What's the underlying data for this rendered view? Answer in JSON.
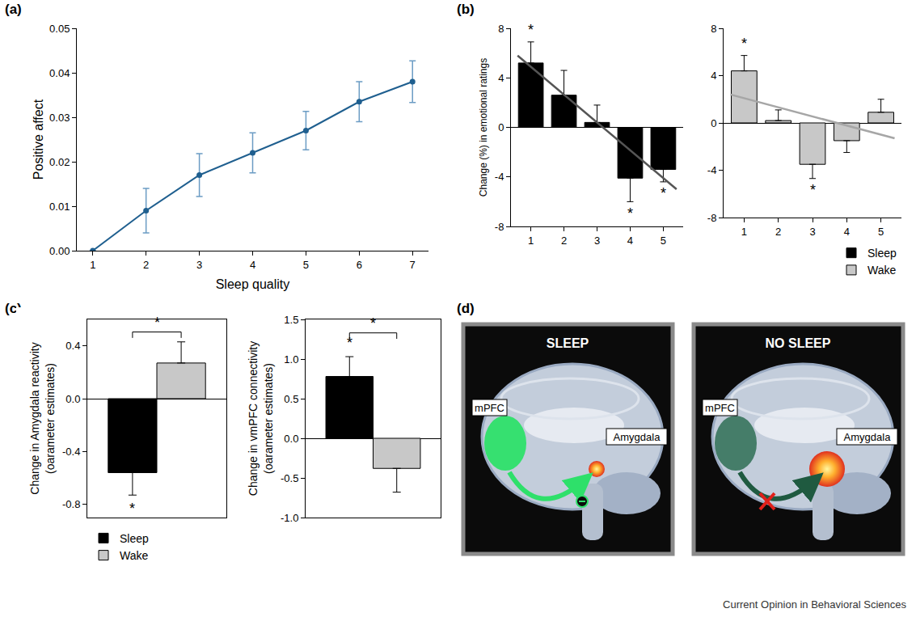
{
  "chart_data": [
    {
      "panel": "(a)",
      "type": "line",
      "x": [
        1,
        2,
        3,
        4,
        5,
        6,
        7
      ],
      "values": [
        0,
        0.009,
        0.017,
        0.022,
        0.027,
        0.0335,
        0.038
      ],
      "errors": [
        0,
        0.005,
        0.0048,
        0.0045,
        0.0043,
        0.0045,
        0.0047
      ],
      "color": "#1f5f8f",
      "marker": "circle",
      "xlabel": "Sleep quality",
      "ylabel": "Positive affect",
      "xlim": [
        0.7,
        7.3
      ],
      "xticks": [
        1,
        2,
        3,
        4,
        5,
        6,
        7
      ],
      "ylim": [
        0,
        0.05
      ],
      "yticks": [
        {
          "value": 0,
          "label": "0.00"
        },
        0.01,
        0.02,
        0.03,
        0.04,
        0.05
      ],
      "grid": false
    },
    {
      "panel": "(b)",
      "type": "bar",
      "x": [
        1,
        2,
        3,
        4,
        5
      ],
      "ylabel": "Change (%) in emotional ratings",
      "series": [
        {
          "name": "Sleep",
          "color": "#000000",
          "values": [
            5.2,
            2.6,
            0.4,
            -4.1,
            -3.4
          ],
          "errors": [
            1.7,
            2.0,
            1.4,
            1.9,
            1.0
          ]
        }
      ],
      "trend": {
        "x": [
          0.6,
          5.4
        ],
        "values": [
          5.8,
          -5.0
        ]
      },
      "annotations": [
        {
          "x": 1,
          "text": "*"
        },
        {
          "x": 4,
          "text": "*"
        },
        {
          "x": 5,
          "text": "*"
        }
      ],
      "xlim": [
        0.4,
        5.6
      ],
      "xticks": [
        1,
        2,
        3,
        4,
        5
      ],
      "ylim": [
        -8,
        8
      ],
      "yticks": [
        -8,
        -4,
        0,
        4,
        8
      ],
      "grid": false
    },
    {
      "type": "bar",
      "x": [
        1,
        2,
        3,
        4,
        5
      ],
      "series": [
        {
          "name": "Wake",
          "color": "#c8c8c8",
          "values": [
            4.4,
            0.2,
            -3.5,
            -1.5,
            0.9
          ],
          "errors": [
            1.3,
            0.9,
            1.2,
            1.0,
            1.1
          ]
        }
      ],
      "trend": {
        "x": [
          0.6,
          5.4
        ],
        "values": [
          2.4,
          -1.3
        ]
      },
      "annotations": [
        {
          "x": 1,
          "text": "*"
        },
        {
          "x": 3,
          "text": "*"
        }
      ],
      "xlim": [
        0.4,
        5.6
      ],
      "xticks": [
        1,
        2,
        3,
        4,
        5
      ],
      "ylim": [
        -8,
        8
      ],
      "yticks": [
        -8,
        -4,
        0,
        4,
        8
      ],
      "grid": false,
      "legend": "bottom right"
    },
    {
      "panel": "(c)",
      "type": "bar",
      "categories": [
        null
      ],
      "ylabel": [
        "Change in Amygdala reactivity",
        "(oarameter estimates)"
      ],
      "series": [
        {
          "name": "Sleep",
          "color": "#000000",
          "values": [
            -0.56
          ],
          "errors": [
            0.17
          ]
        },
        {
          "name": "Wake",
          "color": "#c8c8c8",
          "values": [
            0.27
          ],
          "errors": [
            0.16
          ]
        }
      ],
      "annotations": [
        {
          "series": "Sleep",
          "text": "*"
        },
        {
          "between": [
            "Sleep",
            "Wake"
          ],
          "text": "*"
        }
      ],
      "ylim": [
        -0.9,
        0.6
      ],
      "yticks": [
        -0.8,
        -0.4,
        {
          "value": 0,
          "label": "0.0"
        },
        0.4
      ],
      "tick_labels": "y",
      "grid": false,
      "legend": "bottom left"
    },
    {
      "type": "bar",
      "categories": [
        null
      ],
      "ylabel": [
        "Change in vmPFC connectivity",
        "(oarameter estimates)"
      ],
      "series": [
        {
          "name": "Sleep",
          "color": "#000000",
          "values": [
            0.78
          ],
          "errors": [
            0.25
          ]
        },
        {
          "name": "Wake",
          "color": "#c8c8c8",
          "values": [
            -0.38
          ],
          "errors": [
            0.3
          ]
        }
      ],
      "annotations": [
        {
          "series": "Sleep",
          "text": "*"
        },
        {
          "between": [
            "Sleep",
            "Wake"
          ],
          "text": "*"
        }
      ],
      "ylim": [
        -1.0,
        1.5
      ],
      "yticks": [
        {
          "value": -1,
          "label": "-1.0"
        },
        -0.5,
        {
          "value": 0,
          "label": "0.0"
        },
        0.5,
        {
          "value": 1,
          "label": "1.0"
        },
        1.5
      ],
      "tick_labels": "y",
      "grid": false
    }
  ],
  "diagram": {
    "panel": "(d)",
    "images": [
      {
        "title": "SLEEP",
        "labels": [
          "mPFC",
          "Amygdala"
        ]
      },
      {
        "title": "NO SLEEP",
        "labels": [
          "mPFC",
          "Amygdala"
        ]
      }
    ]
  },
  "credit": "Current Opinion in Behavioral Sciences"
}
